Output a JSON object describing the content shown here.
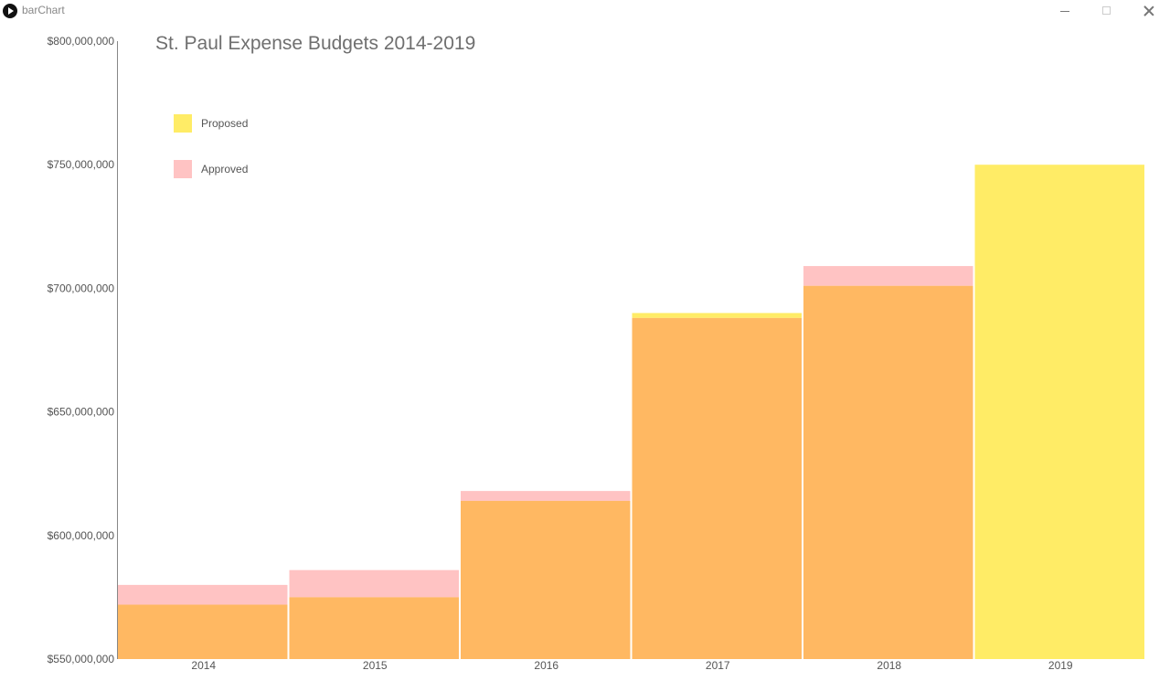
{
  "window": {
    "title": "barChart",
    "icon": "play-icon"
  },
  "chart_data": {
    "type": "bar",
    "title": "St. Paul Expense Budgets 2014-2019",
    "xlabel": "",
    "ylabel": "",
    "categories": [
      "2014",
      "2015",
      "2016",
      "2017",
      "2018",
      "2019"
    ],
    "series": [
      {
        "name": "Proposed",
        "values": [
          572000000,
          575000000,
          614000000,
          690000000,
          701000000,
          750000000
        ]
      },
      {
        "name": "Approved",
        "values": [
          580000000,
          586000000,
          618000000,
          688000000,
          709000000,
          null
        ]
      }
    ],
    "ylim": [
      550000000,
      800000000
    ],
    "yticks": [
      550000000,
      600000000,
      650000000,
      700000000,
      750000000,
      800000000
    ],
    "ytick_labels": [
      "$550,000,000",
      "$600,000,000",
      "$650,000,000",
      "$700,000,000",
      "$750,000,000",
      "$800,000,000"
    ],
    "legend_position": "top-left",
    "grid": false,
    "colors": {
      "proposed": "#ffec66",
      "approved": "#ffc3c3",
      "overlap": "#ffb862",
      "axis": "#888888"
    }
  }
}
